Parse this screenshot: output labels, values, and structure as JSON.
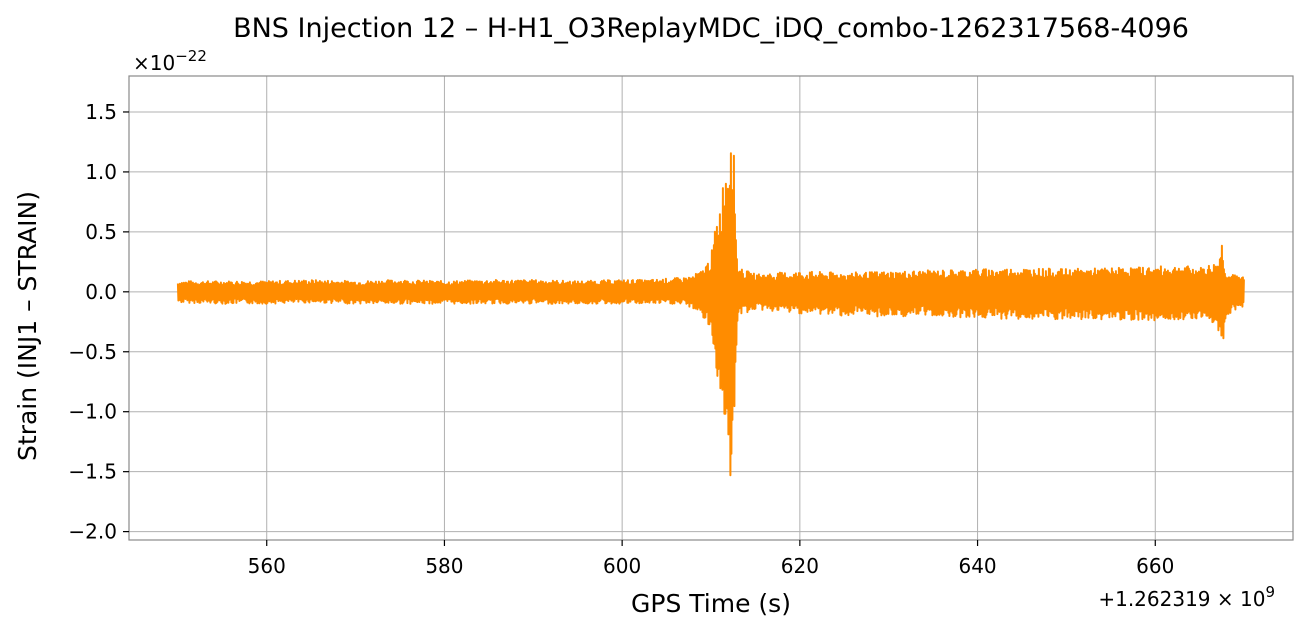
{
  "chart_data": {
    "type": "line",
    "title": "BNS Injection 12 – H-H1_O3ReplayMDC_iDQ_combo-1262317568-4096",
    "xlabel": "GPS Time (s)",
    "ylabel": "Strain (INJ1 – STRAIN)",
    "x_offset_label": "+1.262319 × 10",
    "x_offset_exponent": "9",
    "y_multiplier_label": "×10",
    "y_multiplier_exponent": "−22",
    "xlim": [
      544.5,
      675.5
    ],
    "ylim": [
      -2.07,
      1.8
    ],
    "x_ticks": [
      560,
      580,
      600,
      620,
      640,
      660
    ],
    "x_tick_labels": [
      "560",
      "580",
      "600",
      "620",
      "640",
      "660"
    ],
    "y_ticks": [
      1.5,
      1.0,
      0.5,
      0.0,
      -0.5,
      -1.0,
      -1.5,
      -2.0
    ],
    "y_tick_labels": [
      "1.5",
      "1.0",
      "0.5",
      "0.0",
      "−0.5",
      "−1.0",
      "−1.5",
      "−2.0"
    ],
    "grid": true,
    "series": [
      {
        "color": "#ff8c00",
        "x": [
          550.0,
          555,
          560,
          565,
          570,
          575,
          580,
          585,
          590,
          595,
          600,
          603,
          605,
          607,
          608,
          609,
          610,
          610.5,
          611,
          611.5,
          612,
          612.3,
          612.6,
          613,
          615,
          620,
          625,
          630,
          635,
          640,
          645,
          650,
          655,
          660,
          663,
          665,
          667,
          667.5,
          668,
          669,
          670
        ],
        "y_upper": [
          0.09,
          0.09,
          0.09,
          0.1,
          0.09,
          0.1,
          0.09,
          0.1,
          0.1,
          0.09,
          0.1,
          0.1,
          0.11,
          0.12,
          0.14,
          0.18,
          0.3,
          0.55,
          0.75,
          1.0,
          1.3,
          1.62,
          1.1,
          0.2,
          0.15,
          0.17,
          0.16,
          0.17,
          0.18,
          0.19,
          0.2,
          0.19,
          0.2,
          0.21,
          0.22,
          0.2,
          0.25,
          0.43,
          0.15,
          0.14,
          0.13
        ],
        "y_lower": [
          -0.09,
          -0.1,
          -0.1,
          -0.09,
          -0.1,
          -0.1,
          -0.1,
          -0.1,
          -0.1,
          -0.1,
          -0.1,
          -0.1,
          -0.1,
          -0.11,
          -0.14,
          -0.2,
          -0.35,
          -0.6,
          -0.85,
          -1.1,
          -1.25,
          -1.88,
          -1.3,
          -0.2,
          -0.15,
          -0.18,
          -0.2,
          -0.21,
          -0.2,
          -0.22,
          -0.23,
          -0.24,
          -0.23,
          -0.24,
          -0.23,
          -0.22,
          -0.28,
          -0.5,
          -0.2,
          -0.15,
          -0.12
        ]
      }
    ]
  }
}
